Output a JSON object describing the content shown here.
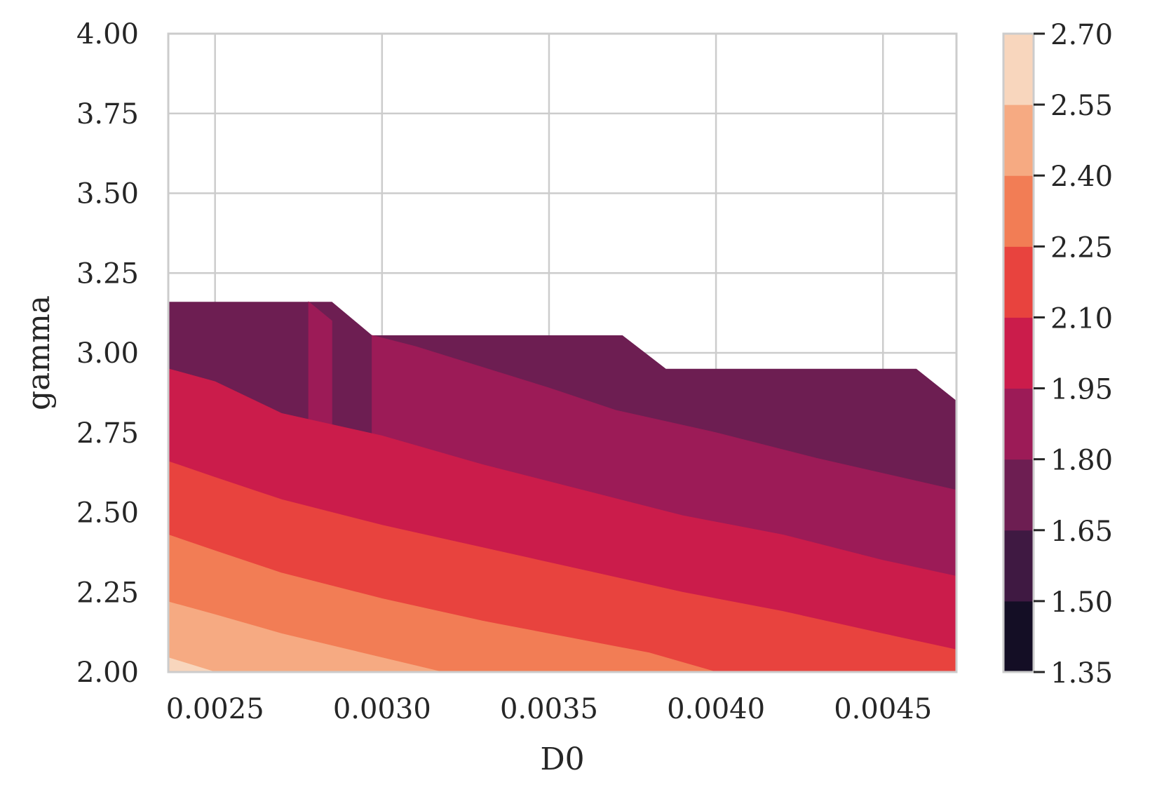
{
  "chart_data": {
    "type": "contourf",
    "title": "",
    "xlabel": "D0",
    "ylabel": "gamma",
    "xlim": [
      0.00236,
      0.00472
    ],
    "ylim": [
      2.0,
      4.0
    ],
    "x_ticks": [
      0.0025,
      0.003,
      0.0035,
      0.004,
      0.0045
    ],
    "x_tick_labels": [
      "0.0025",
      "0.0030",
      "0.0035",
      "0.0040",
      "0.0045"
    ],
    "y_ticks": [
      2.0,
      2.25,
      2.5,
      2.75,
      3.0,
      3.25,
      3.5,
      3.75,
      4.0
    ],
    "y_tick_labels": [
      "2.00",
      "2.25",
      "2.50",
      "2.75",
      "3.00",
      "3.25",
      "3.50",
      "3.75",
      "4.00"
    ],
    "grid": true,
    "colorbar": {
      "levels": [
        1.35,
        1.5,
        1.65,
        1.8,
        1.95,
        2.1,
        2.25,
        2.4,
        2.55,
        2.7
      ],
      "tick_labels": [
        "1.35",
        "1.50",
        "1.65",
        "1.80",
        "1.95",
        "2.10",
        "2.25",
        "2.40",
        "2.55",
        "2.70"
      ],
      "colors": [
        "#140e25",
        "#3f1942",
        "#6d1e52",
        "#9c1b57",
        "#cb1c4b",
        "#e8433e",
        "#f27d55",
        "#f6aa82",
        "#f8d6bd"
      ]
    },
    "data_boundary": {
      "x": [
        0.00236,
        0.00278,
        0.00285,
        0.00297,
        0.00372,
        0.00385,
        0.0046,
        0.00472
      ],
      "y": [
        3.16,
        3.16,
        3.16,
        3.055,
        3.055,
        2.95,
        2.95,
        2.85
      ]
    },
    "contour_lines": [
      {
        "level": 1.8,
        "x": [
          0.00278,
          0.00285
        ],
        "y": [
          3.16,
          3.1
        ]
      },
      {
        "level": 1.8,
        "x": [
          0.00297,
          0.0031,
          0.0035,
          0.0037,
          0.004,
          0.0043,
          0.00472
        ],
        "y": [
          3.055,
          3.02,
          2.89,
          2.82,
          2.75,
          2.67,
          2.57
        ]
      },
      {
        "level": 1.95,
        "x": [
          0.00236,
          0.0025,
          0.0027,
          0.003,
          0.0033,
          0.0036,
          0.0039,
          0.0042,
          0.0045,
          0.00472
        ],
        "y": [
          2.95,
          2.91,
          2.81,
          2.74,
          2.65,
          2.57,
          2.49,
          2.43,
          2.35,
          2.3
        ]
      },
      {
        "level": 2.1,
        "x": [
          0.00236,
          0.0025,
          0.0027,
          0.003,
          0.0033,
          0.0036,
          0.0039,
          0.0042,
          0.0045,
          0.00472
        ],
        "y": [
          2.66,
          2.61,
          2.54,
          2.46,
          2.39,
          2.32,
          2.25,
          2.19,
          2.12,
          2.07
        ]
      },
      {
        "level": 2.25,
        "x": [
          0.00236,
          0.0025,
          0.0027,
          0.003,
          0.0033,
          0.0036,
          0.0038,
          0.004
        ],
        "y": [
          2.43,
          2.38,
          2.31,
          2.23,
          2.16,
          2.1,
          2.06,
          2.0
        ]
      },
      {
        "level": 2.4,
        "x": [
          0.00236,
          0.0025,
          0.0027,
          0.0029,
          0.0031,
          0.00318
        ],
        "y": [
          2.22,
          2.18,
          2.12,
          2.07,
          2.02,
          2.0
        ]
      },
      {
        "level": 2.55,
        "x": [
          0.00236,
          0.0025
        ],
        "y": [
          2.045,
          2.0
        ]
      }
    ]
  }
}
